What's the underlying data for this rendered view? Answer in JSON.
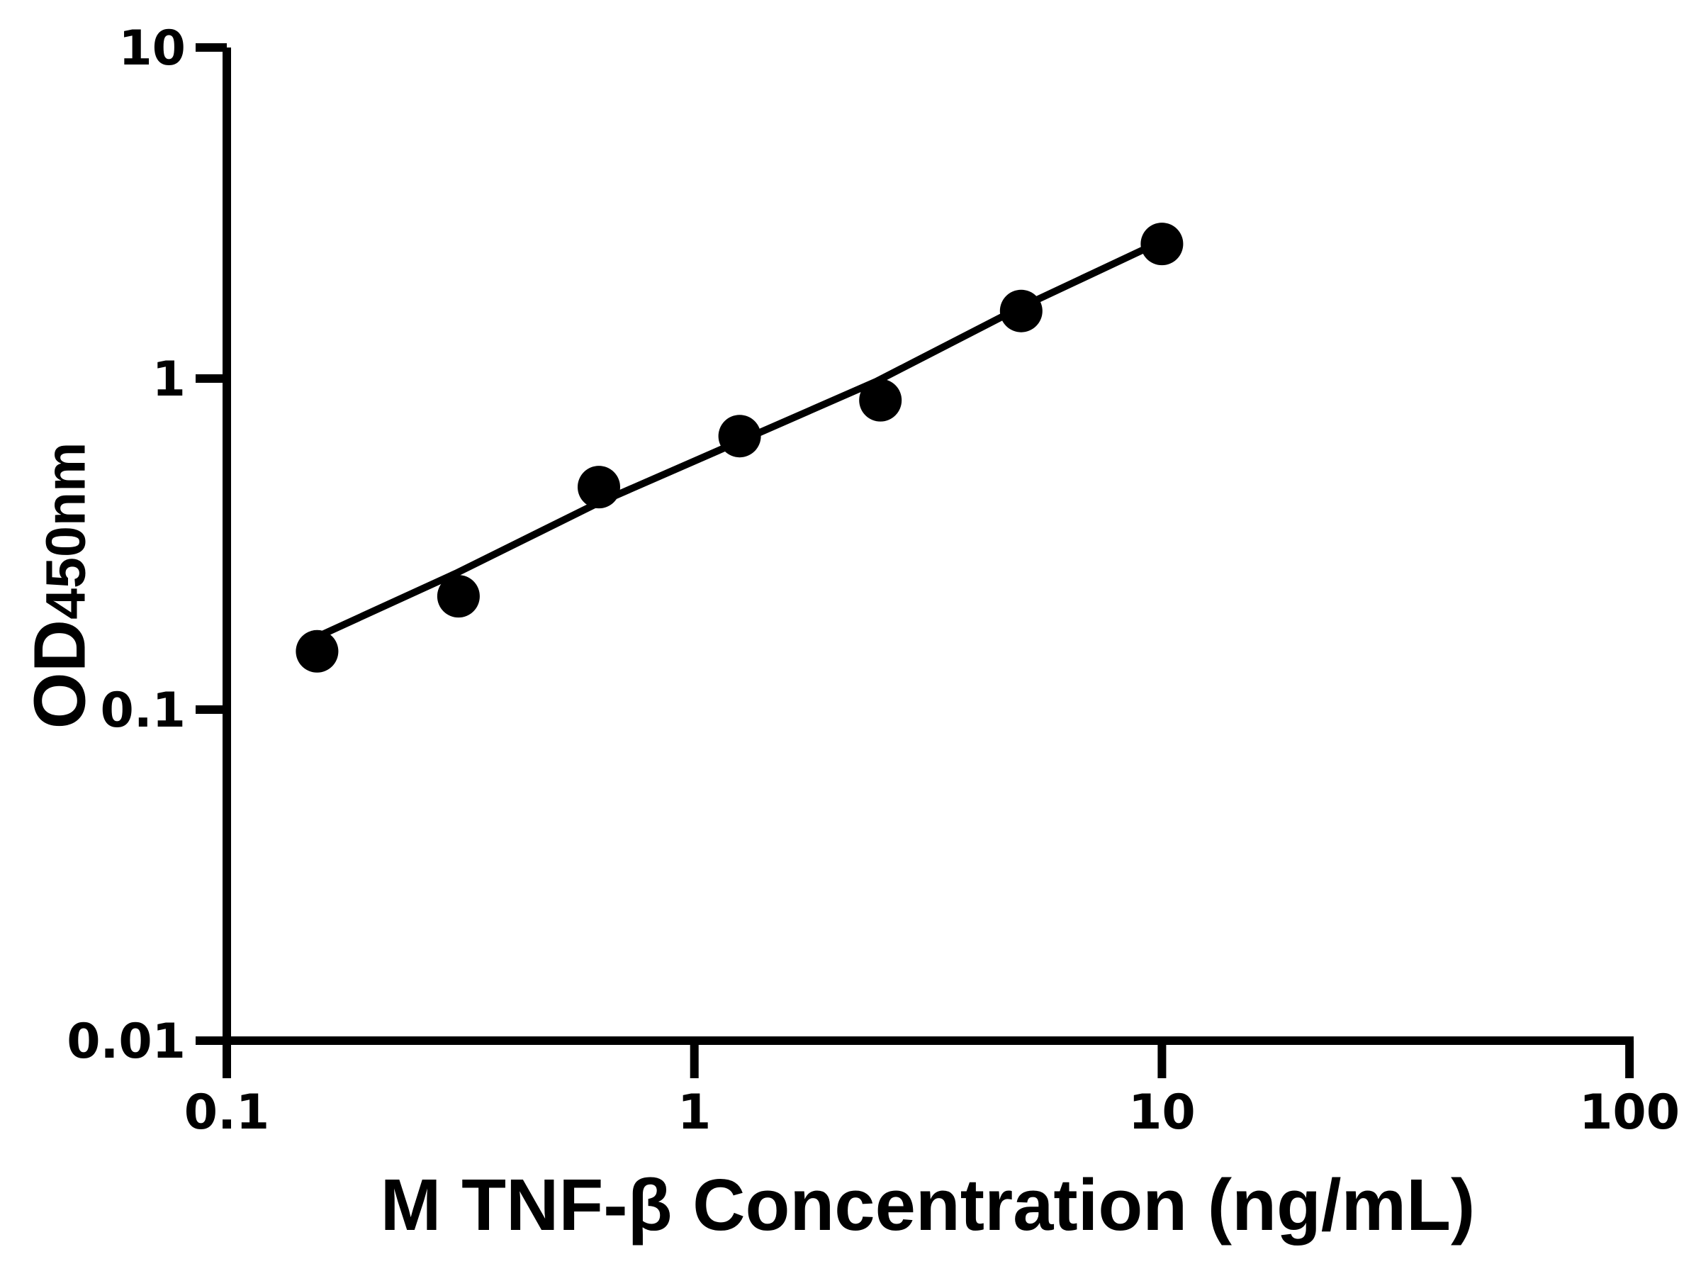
{
  "figure": {
    "background_color": "#ffffff",
    "ink_color": "#000000"
  },
  "chart_data": {
    "type": "scatter",
    "title": "",
    "xlabel": "M TNF-β Concentration (ng/mL)",
    "ylabel_main": "OD",
    "ylabel_sub": "450nm",
    "x_scale": "log",
    "y_scale": "log",
    "xlim": [
      0.1,
      100
    ],
    "ylim": [
      0.01,
      10
    ],
    "grid": false,
    "legend": null,
    "x_ticks": [
      {
        "value": 0.1,
        "label": "0.1"
      },
      {
        "value": 1,
        "label": "1"
      },
      {
        "value": 10,
        "label": "10"
      },
      {
        "value": 100,
        "label": "100"
      }
    ],
    "y_ticks": [
      {
        "value": 10,
        "label": "10"
      },
      {
        "value": 1,
        "label": "1"
      },
      {
        "value": 0.1,
        "label": "0.1"
      },
      {
        "value": 0.01,
        "label": "0.01"
      }
    ],
    "series": [
      {
        "name": "standard-curve-points",
        "marker": "filled-circle",
        "color": "#000000",
        "points": [
          {
            "x": 0.156,
            "y": 0.15
          },
          {
            "x": 0.313,
            "y": 0.22
          },
          {
            "x": 0.625,
            "y": 0.47
          },
          {
            "x": 1.25,
            "y": 0.67
          },
          {
            "x": 2.5,
            "y": 0.86
          },
          {
            "x": 5,
            "y": 1.6
          },
          {
            "x": 10,
            "y": 2.55
          }
        ]
      }
    ],
    "trend_line": {
      "name": "fitted-curve",
      "color": "#000000",
      "samples": [
        {
          "x": 0.149,
          "y": 0.161
        },
        {
          "x": 0.309,
          "y": 0.258
        },
        {
          "x": 0.612,
          "y": 0.416
        },
        {
          "x": 1.22,
          "y": 0.637
        },
        {
          "x": 2.45,
          "y": 0.98
        },
        {
          "x": 4.85,
          "y": 1.61
        },
        {
          "x": 9.64,
          "y": 2.54
        }
      ]
    }
  }
}
